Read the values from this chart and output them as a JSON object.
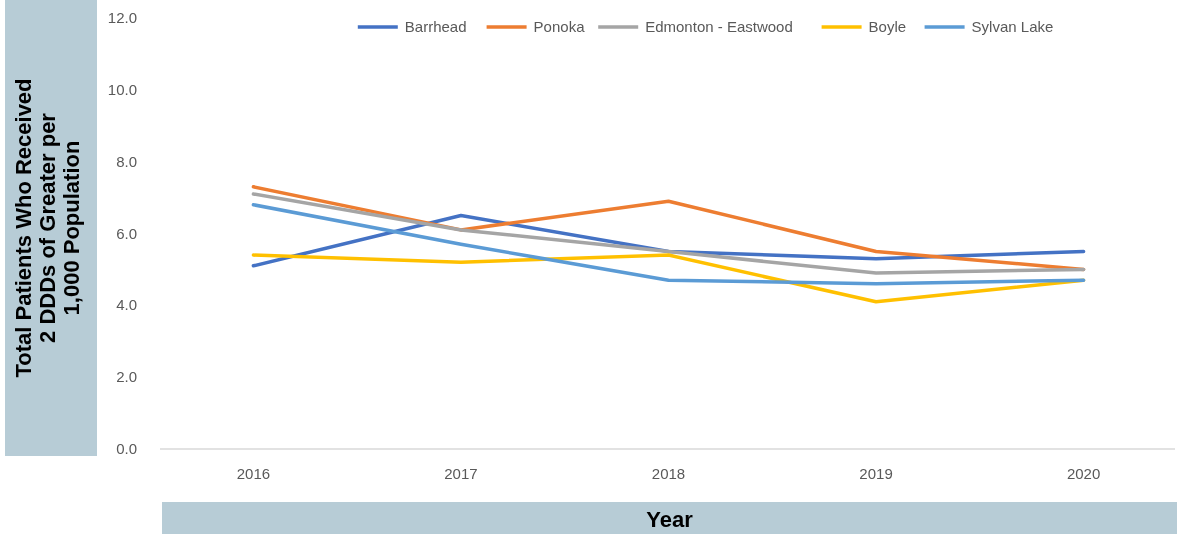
{
  "chart_data": {
    "type": "line",
    "xlabel": "Year",
    "ylabel": "Total Patients Who Received 2 DDDs of Greater per 1,000 Population",
    "categories": [
      "2016",
      "2017",
      "2018",
      "2019",
      "2020"
    ],
    "series": [
      {
        "name": "Barrhead",
        "color": "#4472c4",
        "values": [
          5.1,
          6.5,
          5.5,
          5.3,
          5.5
        ]
      },
      {
        "name": "Ponoka",
        "color": "#ed7d31",
        "values": [
          7.3,
          6.1,
          6.9,
          5.5,
          5.0
        ]
      },
      {
        "name": "Edmonton - Eastwood",
        "color": "#a5a5a5",
        "values": [
          7.1,
          6.1,
          5.5,
          4.9,
          5.0
        ]
      },
      {
        "name": "Boyle",
        "color": "#ffc000",
        "values": [
          5.4,
          5.2,
          5.4,
          4.1,
          4.7
        ]
      },
      {
        "name": "Sylvan Lake",
        "color": "#5b9bd5",
        "values": [
          6.8,
          5.7,
          4.7,
          4.6,
          4.7
        ]
      }
    ],
    "ylim": [
      0,
      12
    ],
    "yticks": [
      {
        "value": 0,
        "label": "0.0"
      },
      {
        "value": 2,
        "label": "2.0"
      },
      {
        "value": 4,
        "label": "4.0"
      },
      {
        "value": 6,
        "label": "6.0"
      },
      {
        "value": 8,
        "label": "8.0"
      },
      {
        "value": 10,
        "label": "10.0"
      },
      {
        "value": 12,
        "label": "12.0"
      }
    ],
    "legend": "top",
    "marker": "none",
    "line_style": "solid"
  }
}
